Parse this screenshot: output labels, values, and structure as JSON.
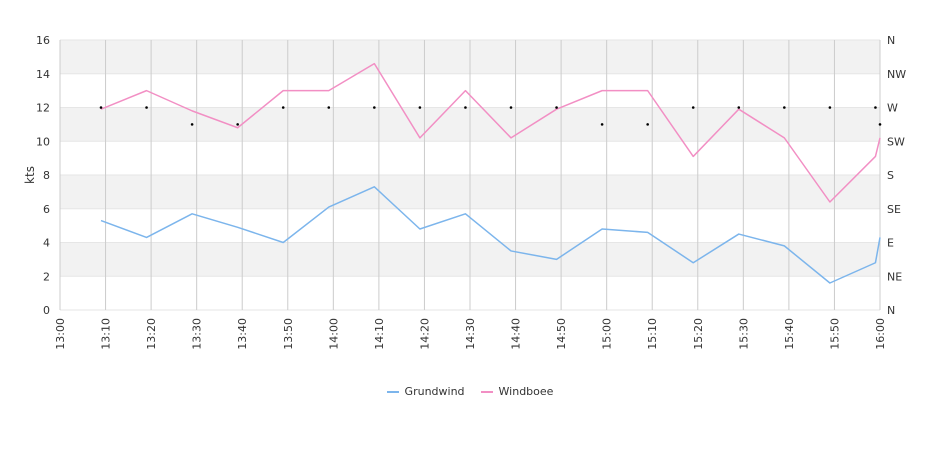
{
  "chart_data": {
    "type": "line",
    "ylabel": "kts",
    "ylim": [
      0,
      16
    ],
    "yticks": [
      "0",
      "2",
      "4",
      "6",
      "8",
      "10",
      "12",
      "14",
      "16"
    ],
    "right_ticks": [
      "N",
      "NE",
      "E",
      "SE",
      "S",
      "SW",
      "W",
      "NW",
      "N"
    ],
    "x_ticks": [
      "13:00",
      "13:10",
      "13:20",
      "13:30",
      "13:40",
      "13:50",
      "14:00",
      "14:10",
      "14:20",
      "14:30",
      "14:40",
      "14:50",
      "15:00",
      "15:10",
      "15:20",
      "15:30",
      "15:40",
      "15:50",
      "16:00"
    ],
    "x": [
      "13:09",
      "13:19",
      "13:29",
      "13:39",
      "13:49",
      "13:59",
      "14:09",
      "14:19",
      "14:29",
      "14:39",
      "14:49",
      "14:59",
      "15:09",
      "15:19",
      "15:29",
      "15:39",
      "15:49",
      "15:59",
      "16:00"
    ],
    "series": [
      {
        "name": "Grundwind",
        "color": "#7cb5ec",
        "values": [
          5.3,
          4.3,
          5.7,
          4.9,
          4.0,
          6.1,
          7.3,
          4.8,
          5.7,
          3.5,
          3.0,
          4.8,
          4.6,
          2.8,
          4.5,
          3.8,
          1.6,
          2.8,
          4.3
        ]
      },
      {
        "name": "Windboee",
        "color": "#f28fc4",
        "values": [
          11.9,
          13.0,
          11.8,
          10.8,
          13.0,
          13.0,
          14.6,
          10.2,
          13.0,
          10.2,
          11.9,
          13.0,
          13.0,
          9.1,
          11.9,
          10.2,
          6.4,
          9.1,
          10.2
        ]
      },
      {
        "name": "",
        "color": "#000000",
        "type": "scatter",
        "x": [
          "13:09",
          "13:19",
          "13:29",
          "13:39",
          "13:49",
          "13:59",
          "14:09",
          "14:19",
          "14:29",
          "14:39",
          "14:49",
          "14:59",
          "15:09",
          "15:19",
          "15:29",
          "15:39",
          "15:49",
          "15:59",
          "16:00"
        ],
        "values": [
          12,
          12,
          11,
          11,
          12,
          12,
          12,
          12,
          12,
          12,
          12,
          11,
          11,
          12,
          12,
          12,
          12,
          12,
          11
        ]
      }
    ],
    "grid": true,
    "legend": "bottom",
    "band_color": "#f2f2f2"
  }
}
